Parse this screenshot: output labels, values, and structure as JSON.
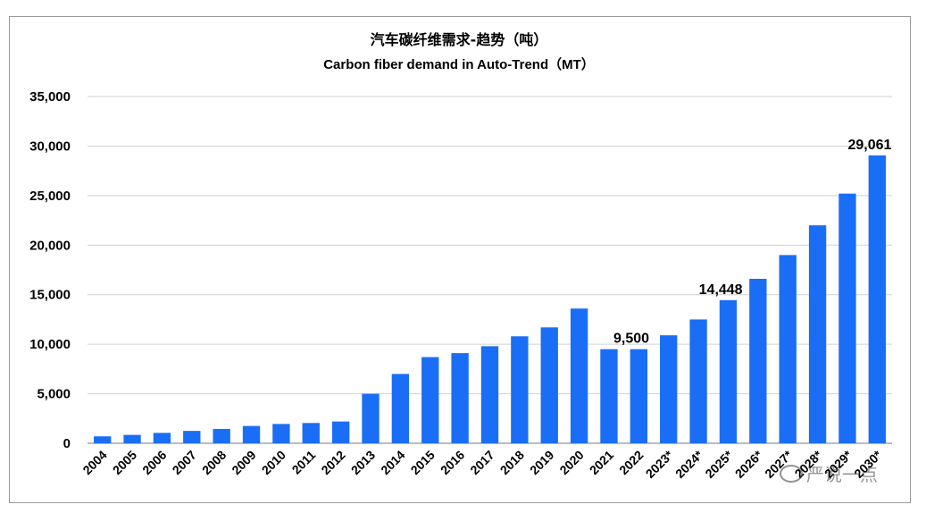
{
  "chart_data": {
    "type": "bar",
    "title": "汽车碳纤维需求-趋势（吨）",
    "subtitle": "Carbon fiber demand in Auto-Trend（MT）",
    "xlabel": "",
    "ylabel": "",
    "ylim": [
      0,
      35000
    ],
    "yticks": [
      0,
      5000,
      10000,
      15000,
      20000,
      25000,
      30000,
      35000
    ],
    "ytick_labels": [
      "0",
      "5,000",
      "10,000",
      "15,000",
      "20,000",
      "25,000",
      "30,000",
      "35,000"
    ],
    "grid": true,
    "categories": [
      "2004",
      "2005",
      "2006",
      "2007",
      "2008",
      "2009",
      "2010",
      "2011",
      "2012",
      "2013",
      "2014",
      "2015",
      "2016",
      "2017",
      "2018",
      "2019",
      "2020",
      "2021",
      "2022",
      "2023*",
      "2024*",
      "2025*",
      "2026*",
      "2027*",
      "2028*",
      "2029*",
      "2030*"
    ],
    "values": [
      700,
      850,
      1050,
      1250,
      1450,
      1750,
      1950,
      2050,
      2200,
      5000,
      7000,
      8700,
      9100,
      9800,
      10800,
      11700,
      13600,
      9500,
      9500,
      10900,
      12500,
      14448,
      16600,
      19000,
      22000,
      25200,
      29061
    ],
    "bar_color": "#1a6ef5",
    "data_labels": [
      {
        "category": "2022",
        "text": "9,500"
      },
      {
        "category": "2025*",
        "text": "14,448"
      },
      {
        "category": "2030*",
        "text": "29,061"
      }
    ]
  },
  "watermark": {
    "text": "严说一点",
    "icon": "wechat-icon"
  }
}
